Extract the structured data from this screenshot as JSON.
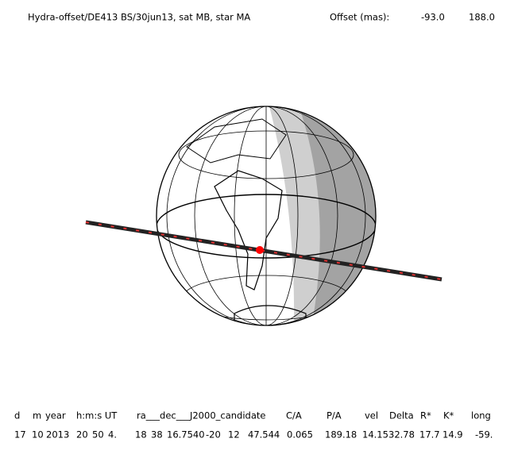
{
  "header": {
    "title": "Hydra-offset/DE413 BS/30jun13, sat MB, star MA",
    "offset_label": "Offset (mas):",
    "offset_values": [
      "-93.0",
      "188.0"
    ]
  },
  "table": {
    "headers": [
      "d",
      "m",
      "year",
      "h:m:s UT",
      "ra___dec___J2000_candidate",
      "C/A",
      "P/A",
      "vel",
      "Delta",
      "R*",
      "K*",
      "long"
    ],
    "row": [
      "17",
      "10",
      "2013",
      "20",
      "50",
      "4.",
      "18",
      "38",
      "16.7540",
      "-20",
      "12",
      "47.544",
      "0.065",
      "189.18",
      "14.15",
      "32.78",
      "17.7",
      "14.9",
      "-59."
    ]
  }
}
